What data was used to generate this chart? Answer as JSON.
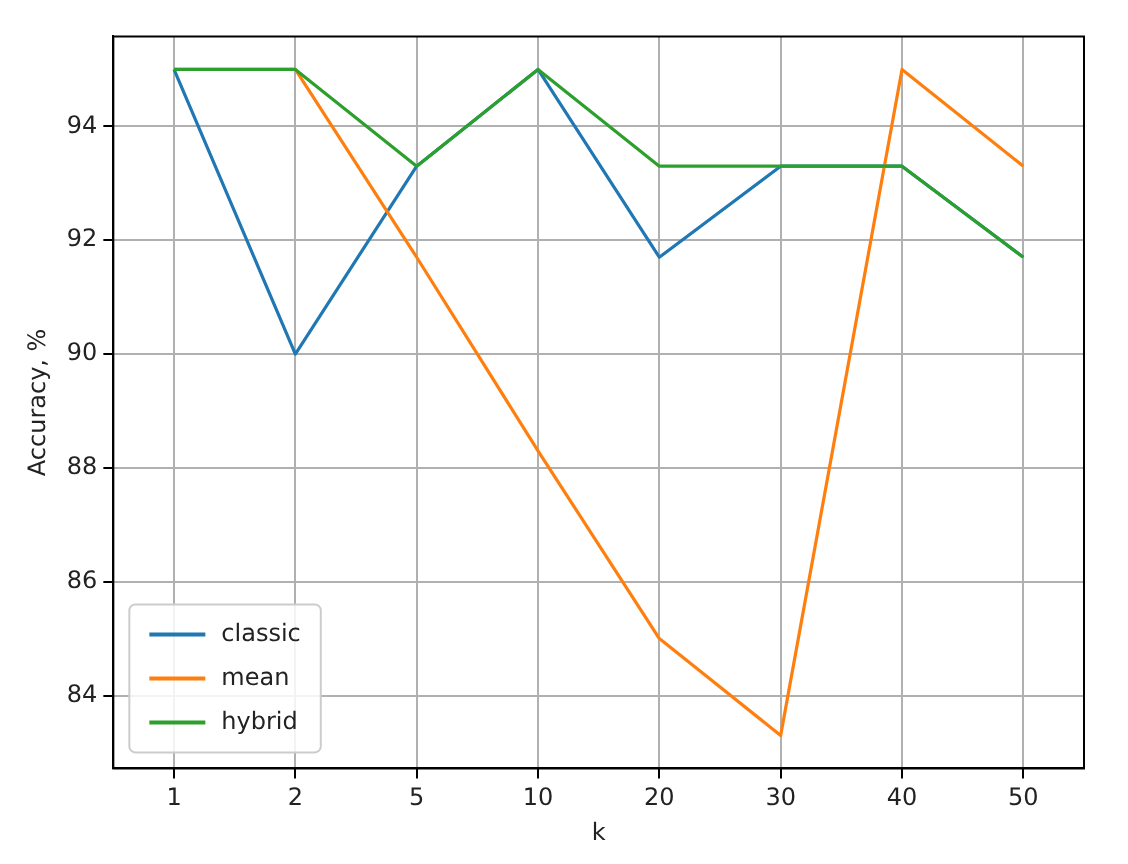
{
  "chart_data": {
    "type": "line",
    "xlabel": "k",
    "ylabel": "Accuracy, %",
    "categories": [
      "1",
      "2",
      "5",
      "10",
      "20",
      "30",
      "40",
      "50"
    ],
    "series": [
      {
        "name": "classic",
        "color": "#1f77b4",
        "values": [
          95,
          90,
          93.3,
          95,
          91.7,
          93.3,
          93.3,
          91.7
        ]
      },
      {
        "name": "mean",
        "color": "#ff7f0e",
        "values": [
          95,
          95,
          91.7,
          88.3,
          85,
          83.3,
          95,
          93.3
        ]
      },
      {
        "name": "hybrid",
        "color": "#2ca02c",
        "values": [
          95,
          95,
          93.3,
          95,
          93.3,
          93.3,
          93.3,
          91.7
        ]
      }
    ],
    "ylim": [
      82.72,
      95.58
    ],
    "yticks": [
      84,
      86,
      88,
      90,
      92,
      94
    ],
    "grid": true,
    "legend": "bottom left",
    "marker": "none",
    "line_style": "solid"
  }
}
